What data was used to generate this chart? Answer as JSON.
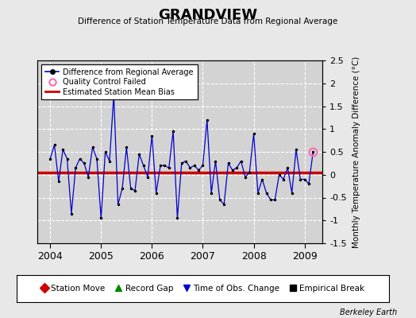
{
  "title": "GRANDVIEW",
  "subtitle": "Difference of Station Temperature Data from Regional Average",
  "ylabel": "Monthly Temperature Anomaly Difference (°C)",
  "background_color": "#e8e8e8",
  "plot_bg_color": "#d3d3d3",
  "bias": 0.05,
  "ylim": [
    -1.5,
    2.5
  ],
  "xlim": [
    2003.75,
    2009.35
  ],
  "xticks": [
    2004,
    2005,
    2006,
    2007,
    2008,
    2009
  ],
  "yticks": [
    -1.5,
    -1.0,
    -0.5,
    0.0,
    0.5,
    1.0,
    1.5,
    2.0,
    2.5
  ],
  "times": [
    2004.0,
    2004.083,
    2004.167,
    2004.25,
    2004.333,
    2004.417,
    2004.5,
    2004.583,
    2004.667,
    2004.75,
    2004.833,
    2004.917,
    2005.0,
    2005.083,
    2005.167,
    2005.25,
    2005.333,
    2005.417,
    2005.5,
    2005.583,
    2005.667,
    2005.75,
    2005.833,
    2005.917,
    2006.0,
    2006.083,
    2006.167,
    2006.25,
    2006.333,
    2006.417,
    2006.5,
    2006.583,
    2006.667,
    2006.75,
    2006.833,
    2006.917,
    2007.0,
    2007.083,
    2007.167,
    2007.25,
    2007.333,
    2007.417,
    2007.5,
    2007.583,
    2007.667,
    2007.75,
    2007.833,
    2007.917,
    2008.0,
    2008.083,
    2008.167,
    2008.25,
    2008.333,
    2008.417,
    2008.5,
    2008.583,
    2008.667,
    2008.75,
    2008.833,
    2008.917,
    2009.0,
    2009.083,
    2009.167
  ],
  "values": [
    0.35,
    0.65,
    -0.15,
    0.55,
    0.35,
    -0.85,
    0.15,
    0.35,
    0.25,
    -0.05,
    0.6,
    0.35,
    -0.95,
    0.5,
    0.3,
    1.75,
    -0.65,
    -0.3,
    0.6,
    -0.3,
    -0.35,
    0.45,
    0.2,
    -0.05,
    0.85,
    -0.4,
    0.2,
    0.2,
    0.15,
    0.95,
    -0.95,
    0.25,
    0.3,
    0.15,
    0.2,
    0.1,
    0.2,
    1.2,
    -0.4,
    0.3,
    -0.55,
    -0.65,
    0.25,
    0.1,
    0.15,
    0.3,
    -0.05,
    0.05,
    0.9,
    -0.4,
    -0.1,
    -0.4,
    -0.55,
    -0.55,
    0.0,
    -0.1,
    0.15,
    -0.4,
    0.55,
    -0.1,
    -0.1,
    -0.2,
    0.5
  ],
  "qc_failed_times": [
    2009.167
  ],
  "qc_failed_values": [
    0.5
  ],
  "line_color": "#0000cc",
  "dot_color": "#000000",
  "bias_color": "#cc0000",
  "qc_color": "#ff69b4",
  "berkeley_earth_text": "Berkeley Earth",
  "legend1_entries": [
    {
      "label": "Difference from Regional Average",
      "color": "#0000cc"
    },
    {
      "label": "Quality Control Failed",
      "color": "#ff69b4"
    },
    {
      "label": "Estimated Station Mean Bias",
      "color": "#cc0000"
    }
  ],
  "legend2_entries": [
    {
      "label": "Station Move",
      "color": "#cc0000",
      "marker": "D"
    },
    {
      "label": "Record Gap",
      "color": "#008800",
      "marker": "^"
    },
    {
      "label": "Time of Obs. Change",
      "color": "#0000cc",
      "marker": "v"
    },
    {
      "label": "Empirical Break",
      "color": "#000000",
      "marker": "s"
    }
  ]
}
